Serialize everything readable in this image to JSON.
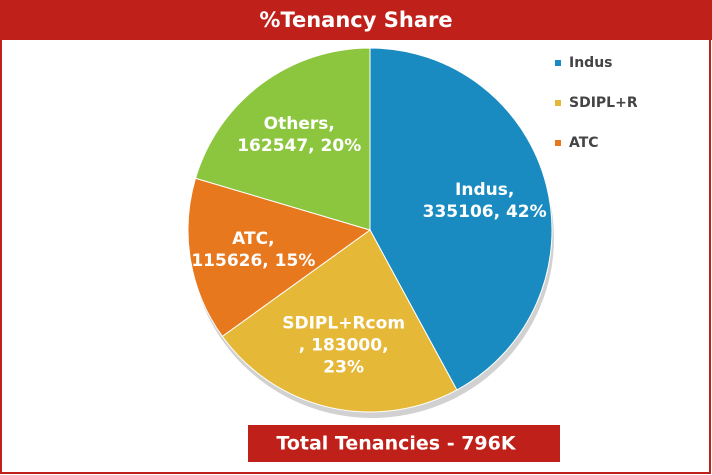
{
  "chart_data": {
    "type": "pie",
    "title": "%Tenancy Share",
    "categories": [
      "Indus",
      "SDIPL+Rcom",
      "ATC",
      "Others"
    ],
    "values": [
      335106,
      183000,
      115626,
      162547
    ],
    "value_labels": [
      [
        "Indus,",
        "335106, 42%"
      ],
      [
        "SDIPL+Rcom",
        ", 183000,",
        "23%"
      ],
      [
        "ATC,",
        "115626, 15%"
      ],
      [
        "Others,",
        "162547, 20%"
      ]
    ],
    "colors": [
      "#1a8bc0",
      "#e6b838",
      "#e8781e",
      "#8cc63f"
    ],
    "legend": "right",
    "footer": "Total Tenancies - 796K"
  }
}
